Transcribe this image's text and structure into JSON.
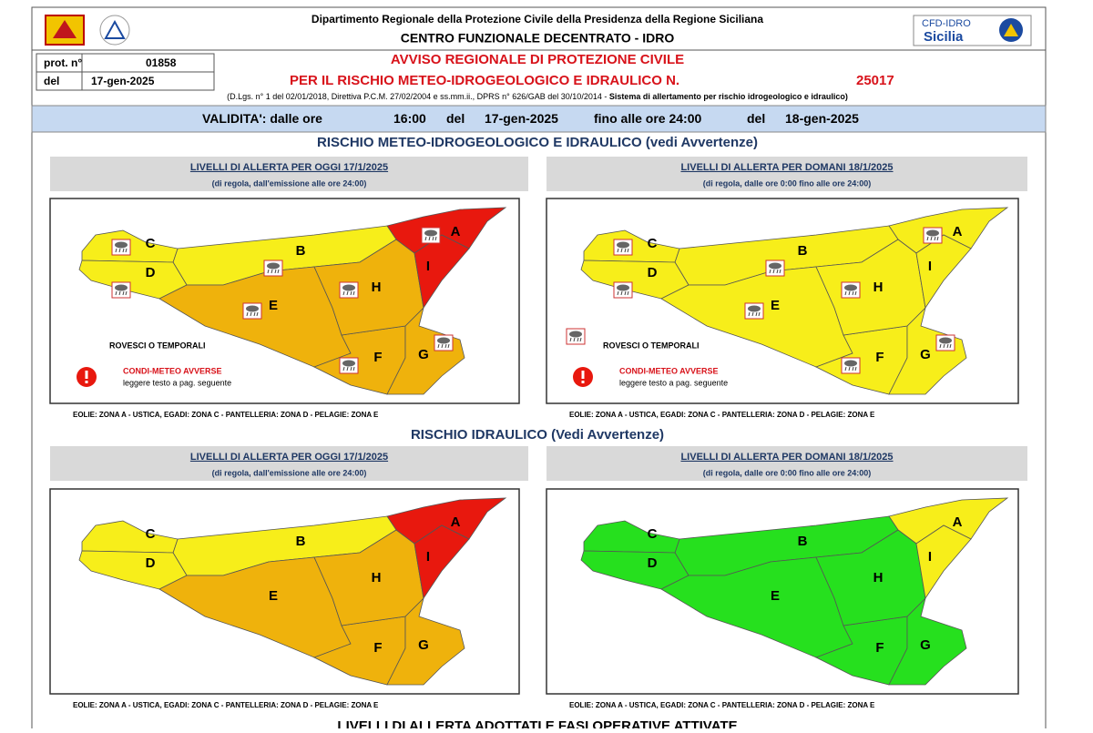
{
  "header": {
    "department": "Dipartimento Regionale della Protezione Civile della Presidenza della Regione Siciliana",
    "centre": "CENTRO FUNZIONALE DECENTRATO - IDRO",
    "badge_top": "CFD-IDRO",
    "badge_bottom": "Sicilia"
  },
  "protocol": {
    "number_label": "prot. n°",
    "number": "01858",
    "date_label": "del",
    "date": "17-gen-2025"
  },
  "notice": {
    "line1": "AVVISO REGIONALE DI PROTEZIONE CIVILE",
    "line2": "PER IL RISCHIO METEO-IDROGEOLOGICO E IDRAULICO N.",
    "number": "25017",
    "legal": "(D.Lgs. n° 1 del 02/01/2018, Direttiva P.C.M. 27/02/2004 e ss.mm.ii., DPRS n° 626/GAB del 30/10/2014 - ",
    "legal_bold": "Sistema di allertamento per rischio idrogeologico e idraulico)"
  },
  "validity": {
    "from_label": "VALIDITA': dalle ore",
    "from_time": "16:00",
    "from_date_label": "del",
    "from_date": "17-gen-2025",
    "to_label": "fino alle ore 24:00",
    "to_date_label": "del",
    "to_date": "18-gen-2025"
  },
  "sections": [
    {
      "title": "RISCHIO METEO-IDROGEOLOGICO E IDRAULICO (vedi Avvertenze)",
      "panels": [
        {
          "title": "LIVELLI DI ALLERTA PER OGGI 17/1/2025",
          "subtitle": "(di regola, dall'emissione alle ore 24:00)",
          "zones": [
            {
              "label": "A",
              "color": "#e8180e",
              "storm": true
            },
            {
              "label": "B",
              "color": "#f7ee1a",
              "storm": true
            },
            {
              "label": "C",
              "color": "#f7ee1a",
              "storm": true
            },
            {
              "label": "D",
              "color": "#f7ee1a",
              "storm": true
            },
            {
              "label": "E",
              "color": "#efb20c",
              "storm": true
            },
            {
              "label": "F",
              "color": "#efb20c",
              "storm": true
            },
            {
              "label": "G",
              "color": "#efb20c",
              "storm": true
            },
            {
              "label": "H",
              "color": "#efb20c",
              "storm": true
            },
            {
              "label": "I",
              "color": "#e8180e",
              "storm": false
            }
          ],
          "legend": {
            "storm_label": "ROVESCI O TEMPORALI",
            "storm_icon": false,
            "warning_label": "CONDI-METEO AVVERSE",
            "warning_note": "leggere testo a pag. seguente"
          },
          "note": "EOLIE: ZONA A - USTICA, EGADI: ZONA C - PANTELLERIA: ZONA D - PELAGIE: ZONA E"
        },
        {
          "title": "LIVELLI DI ALLERTA PER DOMANI 18/1/2025",
          "subtitle": "(di regola, dalle ore 0:00 fino alle ore 24:00)",
          "zones": [
            {
              "label": "A",
              "color": "#f7ee1a",
              "storm": true
            },
            {
              "label": "B",
              "color": "#f7ee1a",
              "storm": true
            },
            {
              "label": "C",
              "color": "#f7ee1a",
              "storm": true
            },
            {
              "label": "D",
              "color": "#f7ee1a",
              "storm": true
            },
            {
              "label": "E",
              "color": "#f7ee1a",
              "storm": true
            },
            {
              "label": "F",
              "color": "#f7ee1a",
              "storm": true
            },
            {
              "label": "G",
              "color": "#f7ee1a",
              "storm": true
            },
            {
              "label": "H",
              "color": "#f7ee1a",
              "storm": true
            },
            {
              "label": "I",
              "color": "#f7ee1a",
              "storm": false
            }
          ],
          "legend": {
            "storm_label": "ROVESCI O TEMPORALI",
            "storm_icon": true,
            "warning_label": "CONDI-METEO AVVERSE",
            "warning_note": "leggere testo a pag. seguente"
          },
          "note": "EOLIE: ZONA A - USTICA, EGADI: ZONA C - PANTELLERIA: ZONA D - PELAGIE: ZONA E"
        }
      ]
    },
    {
      "title": "RISCHIO IDRAULICO (Vedi Avvertenze)",
      "panels": [
        {
          "title": "LIVELLI DI ALLERTA PER OGGI 17/1/2025",
          "subtitle": "(di regola, dall'emissione alle ore 24:00)",
          "zones": [
            {
              "label": "A",
              "color": "#e8180e"
            },
            {
              "label": "B",
              "color": "#f7ee1a"
            },
            {
              "label": "C",
              "color": "#f7ee1a"
            },
            {
              "label": "D",
              "color": "#f7ee1a"
            },
            {
              "label": "E",
              "color": "#efb20c"
            },
            {
              "label": "F",
              "color": "#efb20c"
            },
            {
              "label": "G",
              "color": "#efb20c"
            },
            {
              "label": "H",
              "color": "#efb20c"
            },
            {
              "label": "I",
              "color": "#e8180e"
            }
          ],
          "note": "EOLIE: ZONA A - USTICA, EGADI: ZONA C - PANTELLERIA: ZONA D - PELAGIE: ZONA E"
        },
        {
          "title": "LIVELLI DI ALLERTA PER DOMANI 18/1/2025",
          "subtitle": "(di regola, dalle ore 0:00 fino alle ore 24:00)",
          "zones": [
            {
              "label": "A",
              "color": "#f7ee1a"
            },
            {
              "label": "B",
              "color": "#26e01e"
            },
            {
              "label": "C",
              "color": "#26e01e"
            },
            {
              "label": "D",
              "color": "#26e01e"
            },
            {
              "label": "E",
              "color": "#26e01e"
            },
            {
              "label": "F",
              "color": "#26e01e"
            },
            {
              "label": "G",
              "color": "#26e01e"
            },
            {
              "label": "H",
              "color": "#26e01e"
            },
            {
              "label": "I",
              "color": "#f7ee1a"
            }
          ],
          "note": "EOLIE: ZONA A - USTICA, EGADI: ZONA C - PANTELLERIA: ZONA D - PELAGIE: ZONA E"
        }
      ]
    }
  ],
  "footer_heading": "LIVELLI DI ALLERTA ADOTTATI E FASI OPERATIVE ATTIVATE"
}
